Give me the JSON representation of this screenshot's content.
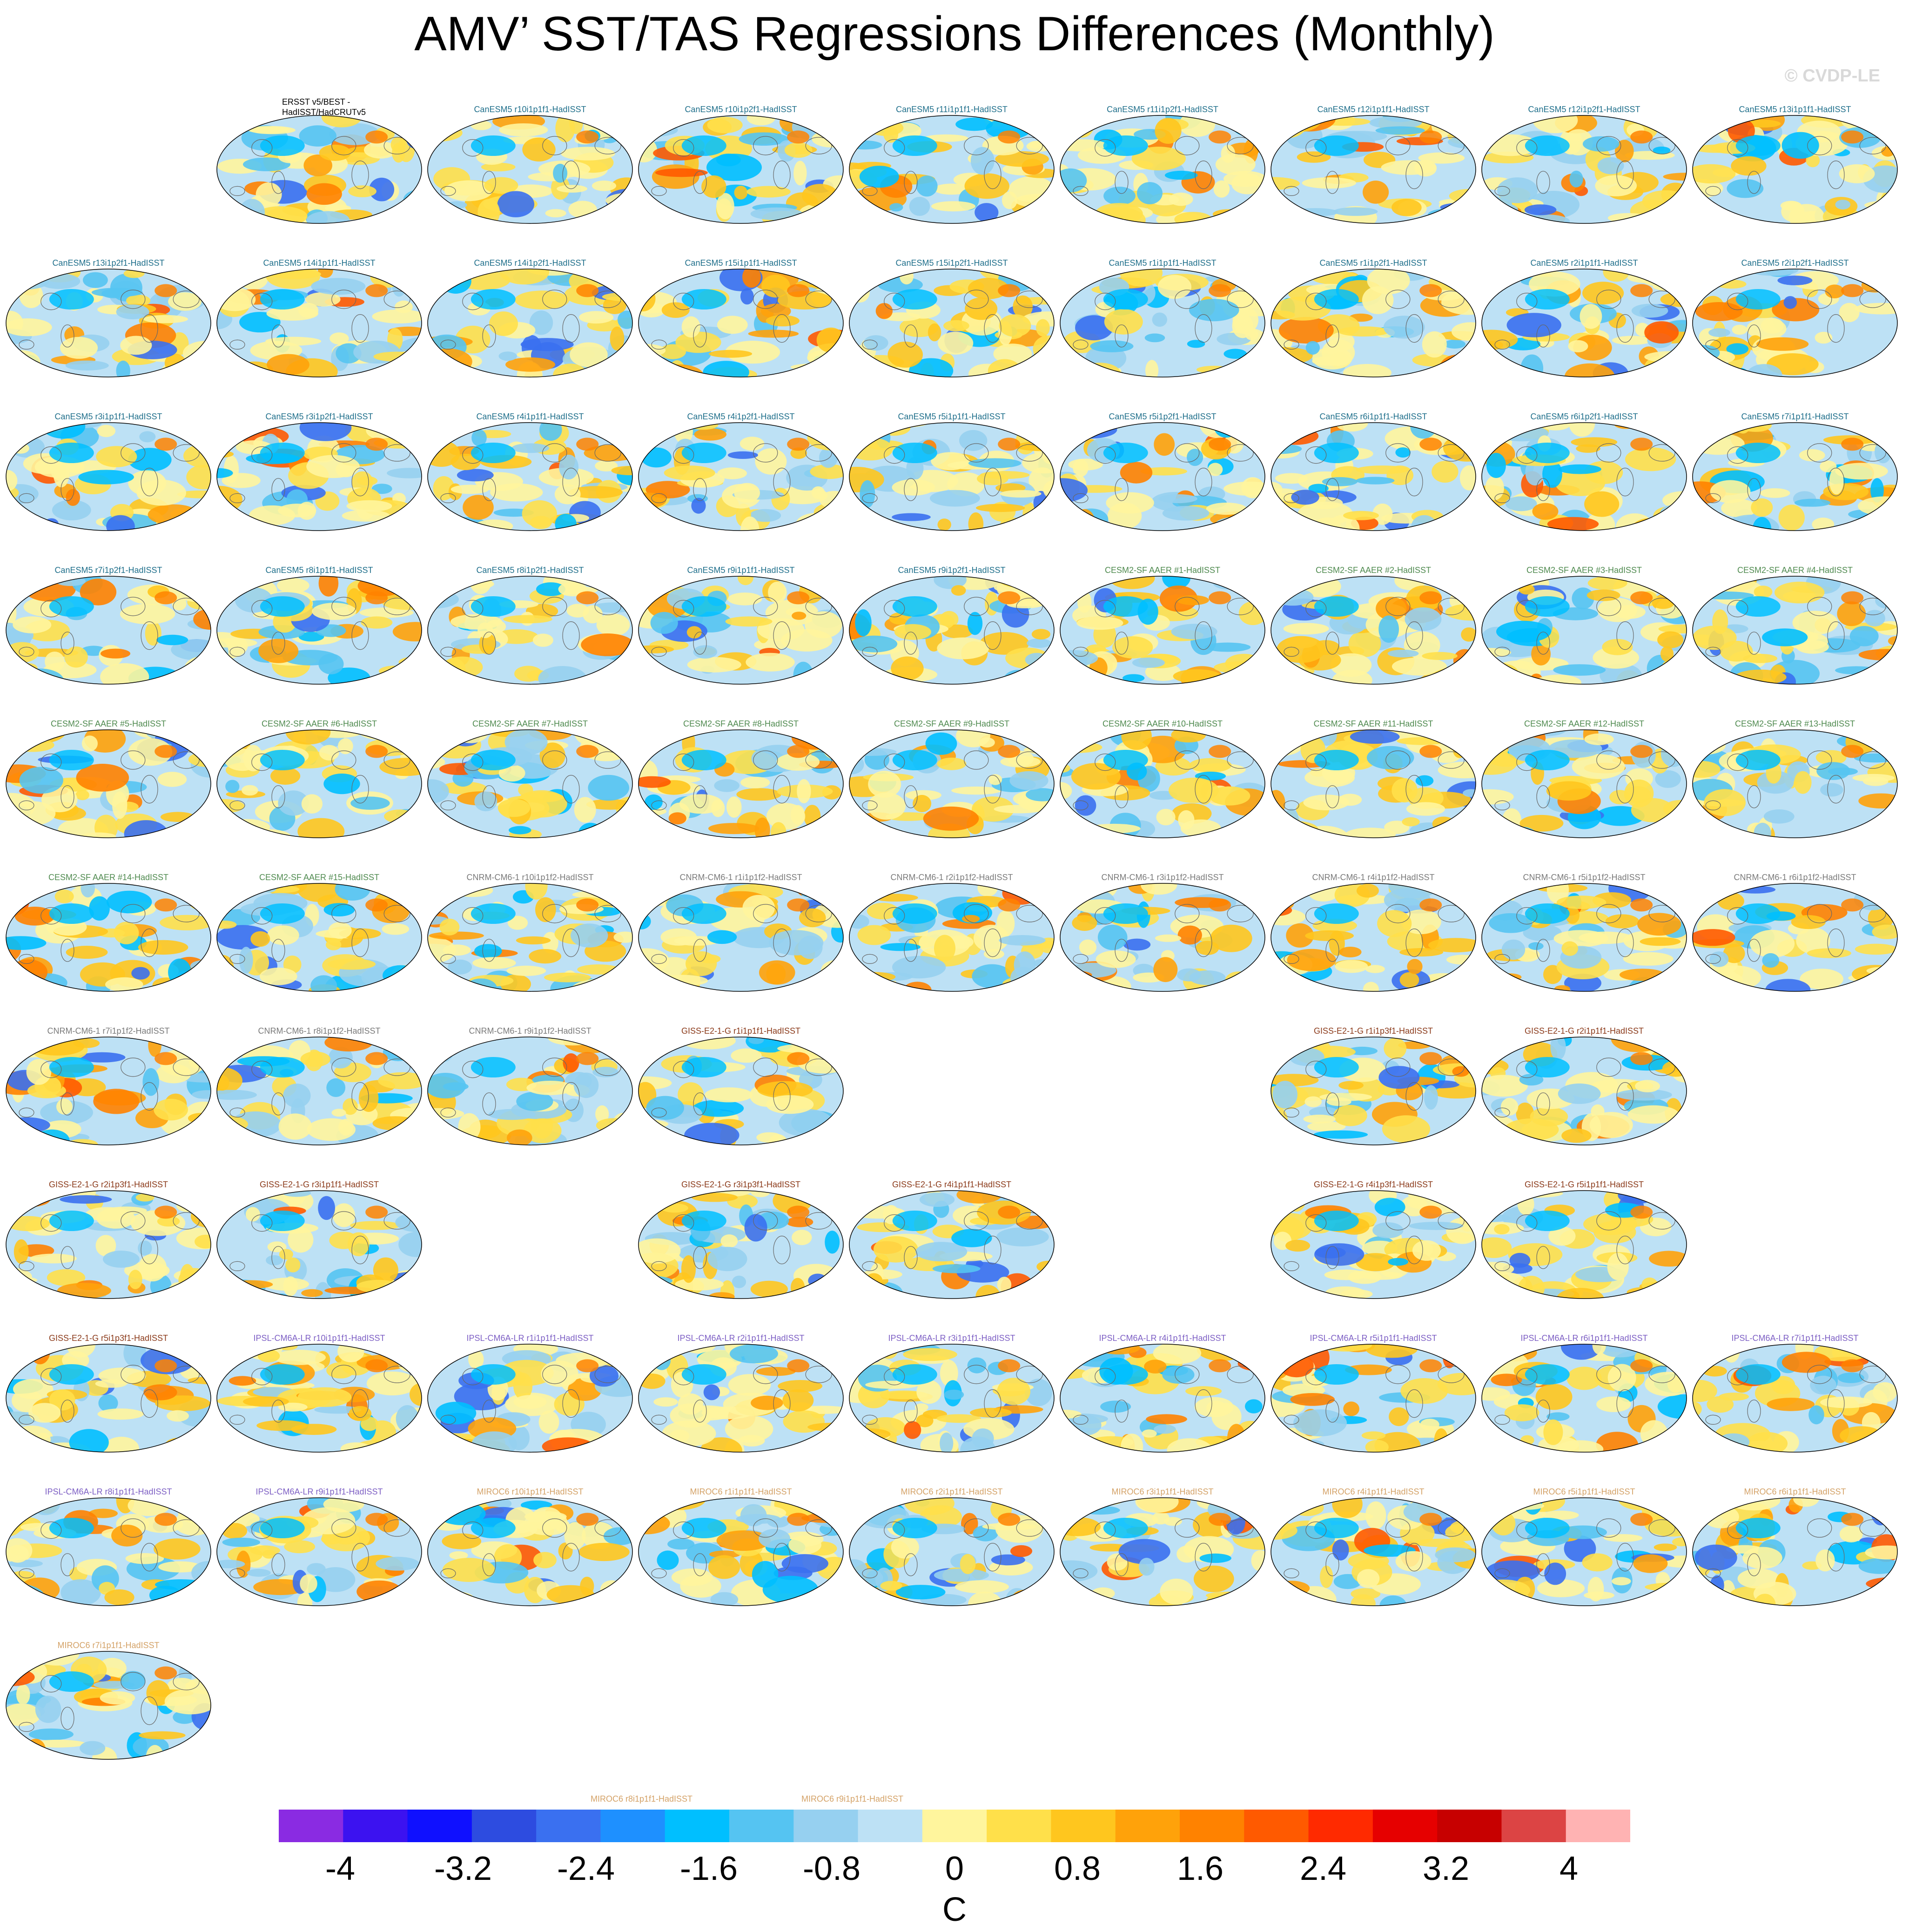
{
  "header": {
    "title": "AMV’ SST/TAS Regressions Differences (Monthly)",
    "watermark": "© CVDP-LE"
  },
  "chart_data": {
    "type": "heatmap",
    "title": "AMV’ SST/TAS Regressions Differences (Monthly)",
    "projection": "Robinson global map",
    "units": "C",
    "colorbar": {
      "orientation": "horizontal",
      "placement": "bottom",
      "min": -4.4,
      "max": 4.4,
      "step": 0.4,
      "tick_labels": [
        "-4",
        "-3.2",
        "-2.4",
        "-1.6",
        "-0.8",
        "0",
        "0.8",
        "1.6",
        "2.4",
        "3.2",
        "4"
      ],
      "colors": [
        "#8a2be2",
        "#3c12f0",
        "#0f10ff",
        "#2d4ce0",
        "#3a70f0",
        "#1e90ff",
        "#00bfff",
        "#55c4f2",
        "#96d0f0",
        "#bde1f5",
        "#fff59d",
        "#ffe04a",
        "#ffc61e",
        "#ffa20a",
        "#ff8200",
        "#ff5a00",
        "#ff2a00",
        "#e60000",
        "#c70000",
        "#dc4444",
        "#ffb3b3"
      ]
    },
    "panels": [
      {
        "label": "ERSST v5/BEST -\nHadISST/HadCRUTv5",
        "group": "obs"
      },
      {
        "label": "CanESM5 r10i1p1f1-HadISST",
        "group": "CanESM5"
      },
      {
        "label": "CanESM5 r10i1p2f1-HadISST",
        "group": "CanESM5"
      },
      {
        "label": "CanESM5 r11i1p1f1-HadISST",
        "group": "CanESM5"
      },
      {
        "label": "CanESM5 r11i1p2f1-HadISST",
        "group": "CanESM5"
      },
      {
        "label": "CanESM5 r12i1p1f1-HadISST",
        "group": "CanESM5"
      },
      {
        "label": "CanESM5 r12i1p2f1-HadISST",
        "group": "CanESM5"
      },
      {
        "label": "CanESM5 r13i1p1f1-HadISST",
        "group": "CanESM5"
      },
      {
        "label": "CanESM5 r13i1p2f1-HadISST",
        "group": "CanESM5"
      },
      {
        "label": "CanESM5 r14i1p1f1-HadISST",
        "group": "CanESM5"
      },
      {
        "label": "CanESM5 r14i1p2f1-HadISST",
        "group": "CanESM5"
      },
      {
        "label": "CanESM5 r15i1p1f1-HadISST",
        "group": "CanESM5"
      },
      {
        "label": "CanESM5 r15i1p2f1-HadISST",
        "group": "CanESM5"
      },
      {
        "label": "CanESM5 r1i1p1f1-HadISST",
        "group": "CanESM5"
      },
      {
        "label": "CanESM5 r1i1p2f1-HadISST",
        "group": "CanESM5"
      },
      {
        "label": "CanESM5 r2i1p1f1-HadISST",
        "group": "CanESM5"
      },
      {
        "label": "CanESM5 r2i1p2f1-HadISST",
        "group": "CanESM5"
      },
      {
        "label": "CanESM5 r3i1p1f1-HadISST",
        "group": "CanESM5"
      },
      {
        "label": "CanESM5 r3i1p2f1-HadISST",
        "group": "CanESM5"
      },
      {
        "label": "CanESM5 r4i1p1f1-HadISST",
        "group": "CanESM5"
      },
      {
        "label": "CanESM5 r4i1p2f1-HadISST",
        "group": "CanESM5"
      },
      {
        "label": "CanESM5 r5i1p1f1-HadISST",
        "group": "CanESM5"
      },
      {
        "label": "CanESM5 r5i1p2f1-HadISST",
        "group": "CanESM5"
      },
      {
        "label": "CanESM5 r6i1p1f1-HadISST",
        "group": "CanESM5"
      },
      {
        "label": "CanESM5 r6i1p2f1-HadISST",
        "group": "CanESM5"
      },
      {
        "label": "CanESM5 r7i1p1f1-HadISST",
        "group": "CanESM5"
      },
      {
        "label": "CanESM5 r7i1p2f1-HadISST",
        "group": "CanESM5"
      },
      {
        "label": "CanESM5 r8i1p1f1-HadISST",
        "group": "CanESM5"
      },
      {
        "label": "CanESM5 r8i1p2f1-HadISST",
        "group": "CanESM5"
      },
      {
        "label": "CanESM5 r9i1p1f1-HadISST",
        "group": "CanESM5"
      },
      {
        "label": "CanESM5 r9i1p2f1-HadISST",
        "group": "CanESM5"
      },
      {
        "label": "CESM2-SF AAER #1-HadISST",
        "group": "CESM2"
      },
      {
        "label": "CESM2-SF AAER #2-HadISST",
        "group": "CESM2"
      },
      {
        "label": "CESM2-SF AAER #3-HadISST",
        "group": "CESM2"
      },
      {
        "label": "CESM2-SF AAER #4-HadISST",
        "group": "CESM2"
      },
      {
        "label": "CESM2-SF AAER #5-HadISST",
        "group": "CESM2"
      },
      {
        "label": "CESM2-SF AAER #6-HadISST",
        "group": "CESM2"
      },
      {
        "label": "CESM2-SF AAER #7-HadISST",
        "group": "CESM2"
      },
      {
        "label": "CESM2-SF AAER #8-HadISST",
        "group": "CESM2"
      },
      {
        "label": "CESM2-SF AAER #9-HadISST",
        "group": "CESM2"
      },
      {
        "label": "CESM2-SF AAER #10-HadISST",
        "group": "CESM2"
      },
      {
        "label": "CESM2-SF AAER #11-HadISST",
        "group": "CESM2"
      },
      {
        "label": "CESM2-SF AAER #12-HadISST",
        "group": "CESM2"
      },
      {
        "label": "CESM2-SF AAER #13-HadISST",
        "group": "CESM2"
      },
      {
        "label": "CESM2-SF AAER #14-HadISST",
        "group": "CESM2"
      },
      {
        "label": "CESM2-SF AAER #15-HadISST",
        "group": "CESM2"
      },
      {
        "label": "CNRM-CM6-1 r10i1p1f2-HadISST",
        "group": "CNRM"
      },
      {
        "label": "CNRM-CM6-1 r1i1p1f2-HadISST",
        "group": "CNRM"
      },
      {
        "label": "CNRM-CM6-1 r2i1p1f2-HadISST",
        "group": "CNRM"
      },
      {
        "label": "CNRM-CM6-1 r3i1p1f2-HadISST",
        "group": "CNRM"
      },
      {
        "label": "CNRM-CM6-1 r4i1p1f2-HadISST",
        "group": "CNRM"
      },
      {
        "label": "CNRM-CM6-1 r5i1p1f2-HadISST",
        "group": "CNRM"
      },
      {
        "label": "CNRM-CM6-1 r6i1p1f2-HadISST",
        "group": "CNRM"
      },
      {
        "label": "CNRM-CM6-1 r7i1p1f2-HadISST",
        "group": "CNRM"
      },
      {
        "label": "CNRM-CM6-1 r8i1p1f2-HadISST",
        "group": "CNRM"
      },
      {
        "label": "CNRM-CM6-1 r9i1p1f2-HadISST",
        "group": "CNRM"
      },
      {
        "label": "GISS-E2-1-G r1i1p1f1-HadISST",
        "group": "GISS"
      },
      null,
      null,
      {
        "label": "GISS-E2-1-G r1i1p3f1-HadISST",
        "group": "GISS"
      },
      {
        "label": "GISS-E2-1-G r2i1p1f1-HadISST",
        "group": "GISS"
      },
      null,
      {
        "label": "GISS-E2-1-G r2i1p3f1-HadISST",
        "group": "GISS"
      },
      {
        "label": "GISS-E2-1-G r3i1p1f1-HadISST",
        "group": "GISS"
      },
      null,
      {
        "label": "GISS-E2-1-G r3i1p3f1-HadISST",
        "group": "GISS"
      },
      {
        "label": "GISS-E2-1-G r4i1p1f1-HadISST",
        "group": "GISS"
      },
      null,
      {
        "label": "GISS-E2-1-G r4i1p3f1-HadISST",
        "group": "GISS"
      },
      {
        "label": "GISS-E2-1-G r5i1p1f1-HadISST",
        "group": "GISS"
      },
      null,
      {
        "label": "GISS-E2-1-G r5i1p3f1-HadISST",
        "group": "GISS"
      },
      {
        "label": "IPSL-CM6A-LR r10i1p1f1-HadISST",
        "group": "IPSL"
      },
      {
        "label": "IPSL-CM6A-LR r1i1p1f1-HadISST",
        "group": "IPSL"
      },
      {
        "label": "IPSL-CM6A-LR r2i1p1f1-HadISST",
        "group": "IPSL"
      },
      {
        "label": "IPSL-CM6A-LR r3i1p1f1-HadISST",
        "group": "IPSL"
      },
      {
        "label": "IPSL-CM6A-LR r4i1p1f1-HadISST",
        "group": "IPSL"
      },
      {
        "label": "IPSL-CM6A-LR r5i1p1f1-HadISST",
        "group": "IPSL"
      },
      {
        "label": "IPSL-CM6A-LR r6i1p1f1-HadISST",
        "group": "IPSL"
      },
      {
        "label": "IPSL-CM6A-LR r7i1p1f1-HadISST",
        "group": "IPSL"
      },
      {
        "label": "IPSL-CM6A-LR r8i1p1f1-HadISST",
        "group": "IPSL"
      },
      {
        "label": "IPSL-CM6A-LR r9i1p1f1-HadISST",
        "group": "IPSL"
      },
      {
        "label": "MIROC6 r10i1p1f1-HadISST",
        "group": "MIROC6"
      },
      {
        "label": "MIROC6 r1i1p1f1-HadISST",
        "group": "MIROC6"
      },
      {
        "label": "MIROC6 r2i1p1f1-HadISST",
        "group": "MIROC6"
      },
      {
        "label": "MIROC6 r3i1p1f1-HadISST",
        "group": "MIROC6"
      },
      {
        "label": "MIROC6 r4i1p1f1-HadISST",
        "group": "MIROC6"
      },
      {
        "label": "MIROC6 r5i1p1f1-HadISST",
        "group": "MIROC6"
      },
      {
        "label": "MIROC6 r6i1p1f1-HadISST",
        "group": "MIROC6"
      },
      {
        "label": "MIROC6 r7i1p1f1-HadISST",
        "group": "MIROC6"
      },
      {
        "label": "MIROC6 r8i1p1f1-HadISST",
        "group": "MIROC6"
      },
      {
        "label": "MIROC6 r9i1p1f1-HadISST",
        "group": "MIROC6"
      }
    ],
    "group_colors": {
      "obs": "#000000",
      "CanESM5": "#1f6f8b",
      "CESM2": "#4f8a4f",
      "CNRM": "#7a7a7a",
      "GISS": "#8b3a1a",
      "IPSL": "#7d5fc4",
      "MIROC6": "#d4a267"
    }
  }
}
